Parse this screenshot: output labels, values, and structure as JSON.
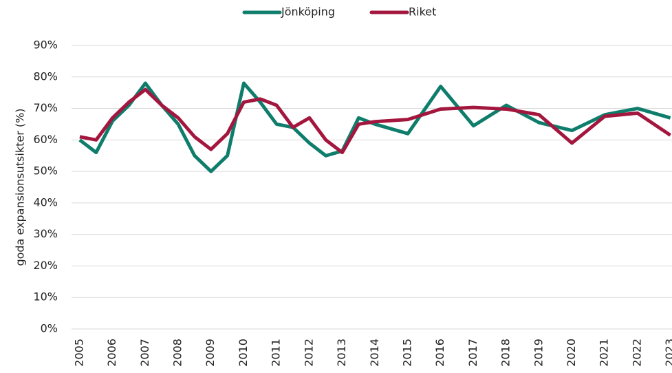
{
  "chart_data": {
    "type": "line",
    "y_label": "goda expansionsutsikter (%)",
    "x": [
      2005,
      2005.5,
      2006,
      2006.5,
      2007,
      2007.5,
      2008,
      2008.5,
      2009,
      2009.5,
      2010,
      2010.5,
      2011,
      2011.5,
      2012,
      2012.5,
      2013,
      2013.5,
      2014,
      2015,
      2016,
      2017,
      2018,
      2019,
      2020,
      2021,
      2022,
      2023
    ],
    "series": [
      {
        "name": "Jönköping",
        "color": "#0f7d6b",
        "values": [
          60,
          56,
          66,
          71,
          78,
          71,
          65,
          55,
          50,
          55,
          78,
          72,
          65,
          64,
          59,
          55,
          56.5,
          67,
          65,
          62,
          77,
          64.5,
          71,
          65.5,
          63,
          68,
          70,
          67
        ]
      },
      {
        "name": "Riket",
        "color": "#a3173f",
        "values": [
          61,
          60,
          67,
          72,
          76,
          71,
          67,
          61,
          57,
          62,
          72,
          73,
          71,
          64,
          67,
          60,
          56,
          65,
          65.8,
          66.5,
          69.8,
          70.3,
          69.8,
          68,
          59,
          67.5,
          68.5,
          61.5
        ]
      }
    ],
    "xlim": [
      2004.75,
      2023.05
    ],
    "xticks": [
      2005,
      2006,
      2007,
      2008,
      2009,
      2010,
      2011,
      2012,
      2013,
      2014,
      2015,
      2016,
      2017,
      2018,
      2019,
      2020,
      2021,
      2022,
      2023
    ],
    "ylim": [
      0,
      90
    ],
    "yticks": [
      {
        "value": 0,
        "label": "0%"
      },
      {
        "value": 10,
        "label": "10%"
      },
      {
        "value": 20,
        "label": "20%"
      },
      {
        "value": 30,
        "label": "30%"
      },
      {
        "value": 40,
        "label": "40%"
      },
      {
        "value": 50,
        "label": "50%"
      },
      {
        "value": 60,
        "label": "60%"
      },
      {
        "value": 70,
        "label": "70%"
      },
      {
        "value": 80,
        "label": "80%"
      },
      {
        "value": 90,
        "label": "90%"
      }
    ],
    "grid": true,
    "legend": "top"
  }
}
